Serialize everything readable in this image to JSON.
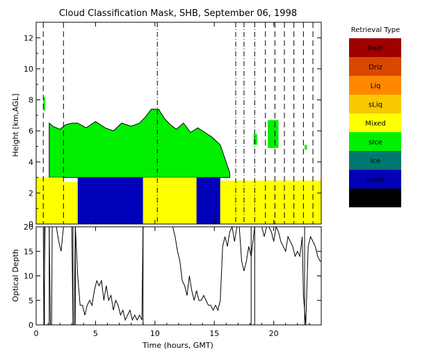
{
  "chart_data": [
    {
      "type": "heatmap",
      "title": "Cloud Classification Mask, SHB, September 06, 1998",
      "xlabel": "",
      "ylabel": "Height [km,AGL]",
      "xlim": [
        0,
        24
      ],
      "ylim": [
        0,
        13
      ],
      "x_ticks": [
        0,
        5,
        10,
        15,
        20
      ],
      "y_ticks": [
        0,
        2,
        4,
        6,
        8,
        10,
        12
      ],
      "legend": {
        "title": "Retrieval Type",
        "placement": "right",
        "entries": [
          {
            "label": "Rain",
            "color": "#a00000"
          },
          {
            "label": "Driz",
            "color": "#d84800"
          },
          {
            "label": "Liq",
            "color": "#ff8800"
          },
          {
            "label": "sLiq",
            "color": "#f8c800"
          },
          {
            "label": "Mixed",
            "color": "#ffff00"
          },
          {
            "label": "sIce",
            "color": "#00f000"
          },
          {
            "label": "Ice",
            "color": "#007870"
          },
          {
            "label": "Snow",
            "color": "#0000b8"
          },
          {
            "label": "Uncrt",
            "color": "#000000"
          }
        ]
      },
      "regions": [
        {
          "class": "Mixed",
          "t0": 0.0,
          "t1": 2.3,
          "h0": 0.0,
          "h1": 3.0
        },
        {
          "class": "Mixed",
          "t0": 2.3,
          "t1": 3.5,
          "h0": 0.0,
          "h1": 2.7
        },
        {
          "class": "Snow",
          "t0": 3.5,
          "t1": 9.0,
          "h0": 0.0,
          "h1": 3.0
        },
        {
          "class": "Mixed",
          "t0": 9.0,
          "t1": 13.5,
          "h0": 0.0,
          "h1": 3.0
        },
        {
          "class": "Snow",
          "t0": 13.5,
          "t1": 15.5,
          "h0": 0.0,
          "h1": 3.0
        },
        {
          "class": "Mixed",
          "t0": 15.5,
          "t1": 24.0,
          "h0": 0.0,
          "h1": 2.8
        },
        {
          "class": "sIce",
          "t0": 0.6,
          "t1": 0.75,
          "h0": 7.3,
          "h1": 8.2
        },
        {
          "class": "sIce",
          "t0": 18.3,
          "t1": 18.6,
          "h0": 5.1,
          "h1": 5.8
        },
        {
          "class": "sIce",
          "t0": 19.5,
          "t1": 20.4,
          "h0": 4.9,
          "h1": 6.7
        },
        {
          "class": "sIce",
          "t0": 22.6,
          "t1": 22.8,
          "h0": 4.8,
          "h1": 5.1
        }
      ],
      "sIce_top": {
        "t": [
          1.1,
          1.4,
          2.0,
          2.5,
          3.0,
          3.5,
          4.2,
          5.0,
          5.8,
          6.5,
          7.2,
          8.0,
          8.7,
          9.2,
          9.7,
          10.3,
          10.8,
          11.3,
          11.8,
          12.4,
          13.0,
          13.6,
          14.2,
          14.8,
          15.5,
          16.3
        ],
        "top": [
          6.5,
          6.3,
          6.1,
          6.4,
          6.5,
          6.5,
          6.2,
          6.6,
          6.2,
          6.0,
          6.5,
          6.3,
          6.5,
          6.9,
          7.4,
          7.4,
          6.8,
          6.4,
          6.1,
          6.5,
          5.9,
          6.2,
          5.9,
          5.6,
          5.1,
          3.3
        ]
      },
      "sIce_bottom": 3.0,
      "vertical_lines": {
        "dashed": [
          0.6,
          2.3,
          19.3,
          20.1,
          20.9,
          21.7,
          22.5,
          23.3
        ],
        "dash_dot": [
          10.2,
          16.8,
          17.5,
          18.4
        ]
      }
    },
    {
      "type": "line",
      "title": "",
      "xlabel": "Time (hours, GMT)",
      "ylabel": "Optical Depth",
      "xlim": [
        0,
        24
      ],
      "ylim": [
        0,
        20
      ],
      "x_ticks": [
        0,
        5,
        10,
        15,
        20
      ],
      "y_ticks": [
        0,
        5,
        10,
        15,
        20
      ],
      "series": [
        {
          "x": [
            0.0,
            0.4,
            0.6,
            0.65,
            0.75,
            0.9,
            1.1,
            1.2,
            1.3,
            1.35,
            1.5,
            1.7,
            1.9,
            2.1,
            2.3,
            2.45,
            2.6,
            2.8,
            3.0,
            3.1,
            3.2,
            3.3,
            3.5,
            3.7,
            3.9,
            4.1,
            4.3,
            4.5,
            4.7,
            4.9,
            5.1,
            5.3,
            5.5,
            5.7,
            5.9,
            6.1,
            6.3,
            6.5,
            6.7,
            6.9,
            7.1,
            7.3,
            7.5,
            7.7,
            7.9,
            8.1,
            8.3,
            8.5,
            8.7,
            8.9,
            9.0,
            9.1,
            9.3,
            9.5,
            9.7,
            9.9,
            10.1,
            10.3,
            10.5,
            10.7,
            10.9,
            11.1,
            11.3,
            11.5,
            11.7,
            11.9,
            12.1,
            12.3,
            12.5,
            12.7,
            12.9,
            13.1,
            13.3,
            13.5,
            13.7,
            13.9,
            14.1,
            14.3,
            14.5,
            14.7,
            14.9,
            15.1,
            15.3,
            15.5,
            15.7,
            15.9,
            16.1,
            16.3,
            16.5,
            16.7,
            16.9,
            17.1,
            17.3,
            17.5,
            17.7,
            17.9,
            18.1,
            18.3,
            18.4,
            18.6,
            18.8,
            19.0,
            19.2,
            19.4,
            19.6,
            19.8,
            20.0,
            20.2,
            20.4,
            20.6,
            20.8,
            21.0,
            21.2,
            21.4,
            21.6,
            21.8,
            22.0,
            22.2,
            22.4,
            22.5,
            22.7,
            22.9,
            23.1,
            23.3,
            23.5,
            23.7,
            23.9,
            24.0
          ],
          "y": [
            20,
            20,
            20,
            0,
            20,
            20,
            20,
            0,
            0,
            20,
            20,
            20,
            17,
            15,
            20,
            20,
            20,
            20,
            20,
            0,
            0,
            20,
            10,
            4,
            4,
            2,
            4,
            5,
            4,
            7,
            9,
            8,
            9,
            5,
            8,
            5,
            6,
            3,
            5,
            4,
            2,
            3,
            1,
            2,
            3,
            1,
            2,
            1,
            2,
            1,
            20,
            20,
            20,
            20,
            20,
            20,
            20,
            20,
            20,
            20,
            20,
            20,
            20,
            20,
            18,
            15,
            13,
            9,
            8,
            6,
            10,
            7,
            5,
            7,
            5,
            5,
            6,
            5,
            4,
            4,
            3,
            4,
            3,
            5,
            16,
            18,
            16,
            19,
            20,
            17,
            20,
            20,
            13,
            11,
            13,
            16,
            14,
            18,
            20,
            20,
            20,
            20,
            18,
            20,
            20,
            19,
            17,
            20,
            19,
            17,
            16,
            15,
            18,
            17,
            16,
            14,
            15,
            14,
            18,
            6,
            0,
            16,
            18,
            17,
            16,
            14,
            13,
            13
          ]
        }
      ],
      "vertical_lines": {
        "solid": [
          0.7,
          1.1,
          3.1,
          3.3,
          9.0,
          18.1,
          18.4,
          22.6
        ]
      }
    }
  ]
}
